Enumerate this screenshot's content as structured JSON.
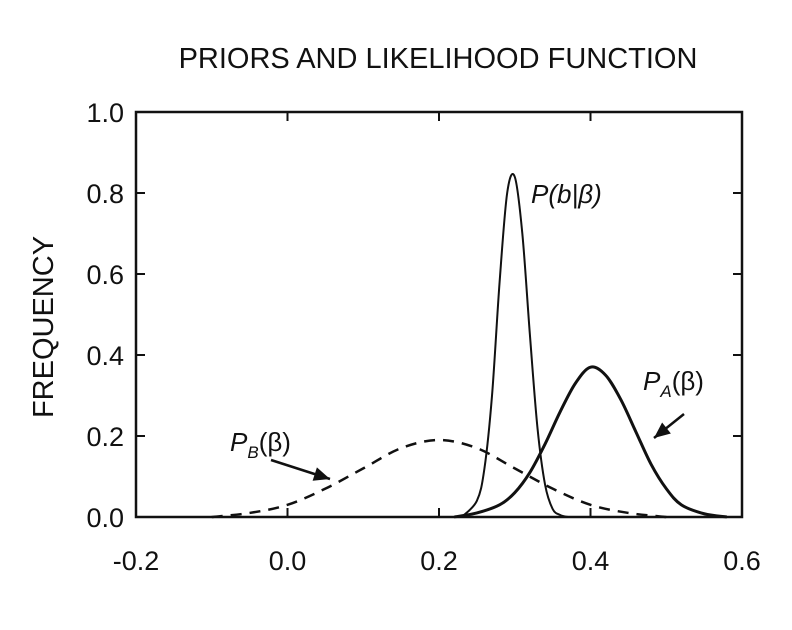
{
  "chart_data": {
    "type": "line",
    "title": "PRIORS AND LIKELIHOOD FUNCTION",
    "xlabel": "",
    "ylabel": "FREQUENCY",
    "xlim": [
      -0.2,
      0.6
    ],
    "ylim": [
      0.0,
      1.0
    ],
    "x_ticks": [
      "-0.2",
      "0.0",
      "0.2",
      "0.4",
      "0.6"
    ],
    "y_ticks": [
      "0.0",
      "0.2",
      "0.4",
      "0.6",
      "0.8",
      "1.0"
    ],
    "grid": false,
    "legend": "none",
    "series": [
      {
        "name": "P(b|β)",
        "label_parts": {
          "main": "P",
          "sub": "",
          "arg": "(b|β)"
        },
        "style": "solid-thin",
        "x": [
          0.23,
          0.25,
          0.26,
          0.27,
          0.28,
          0.29,
          0.3,
          0.31,
          0.32,
          0.33,
          0.34,
          0.35,
          0.36,
          0.37
        ],
        "values": [
          0.0,
          0.04,
          0.12,
          0.3,
          0.58,
          0.8,
          0.84,
          0.7,
          0.45,
          0.22,
          0.08,
          0.02,
          0.005,
          0.0
        ]
      },
      {
        "name": "PA(β)",
        "label_parts": {
          "main": "P",
          "sub": "A",
          "arg": "(β)"
        },
        "style": "solid-thick",
        "x": [
          0.22,
          0.25,
          0.28,
          0.3,
          0.32,
          0.34,
          0.36,
          0.38,
          0.4,
          0.42,
          0.44,
          0.46,
          0.48,
          0.5,
          0.52,
          0.55,
          0.58
        ],
        "values": [
          0.0,
          0.01,
          0.03,
          0.06,
          0.11,
          0.18,
          0.26,
          0.33,
          0.37,
          0.35,
          0.29,
          0.21,
          0.13,
          0.07,
          0.03,
          0.008,
          0.0
        ]
      },
      {
        "name": "PB(β)",
        "label_parts": {
          "main": "P",
          "sub": "B",
          "arg": "(β)"
        },
        "style": "dashed",
        "x": [
          -0.1,
          -0.05,
          0.0,
          0.05,
          0.1,
          0.15,
          0.2,
          0.25,
          0.3,
          0.35,
          0.4,
          0.45,
          0.5
        ],
        "values": [
          0.0,
          0.01,
          0.03,
          0.07,
          0.12,
          0.17,
          0.19,
          0.17,
          0.12,
          0.07,
          0.03,
          0.01,
          0.0
        ]
      }
    ]
  }
}
